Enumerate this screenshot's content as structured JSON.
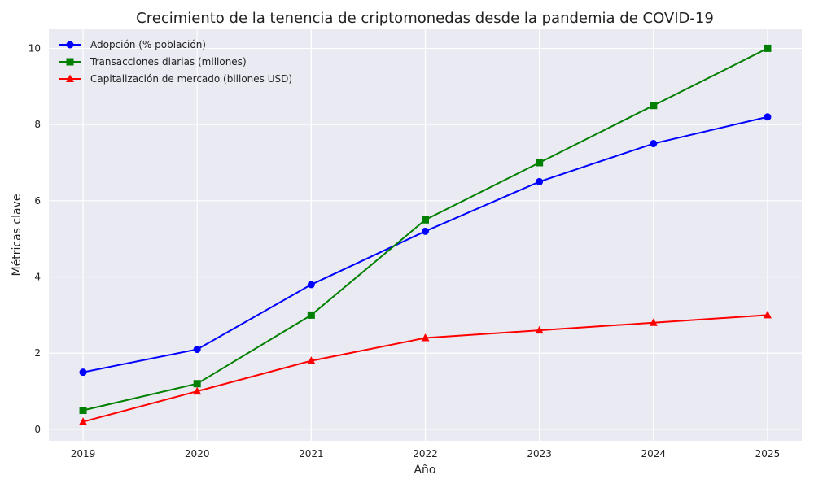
{
  "chart_data": {
    "type": "line",
    "title": "Crecimiento de la tenencia de criptomonedas desde la pandemia de COVID-19",
    "xlabel": "Año",
    "ylabel": "Métricas clave",
    "x": [
      2019,
      2020,
      2021,
      2022,
      2023,
      2024,
      2025
    ],
    "xlim": [
      2018.7,
      2025.3
    ],
    "ylim": [
      -0.3,
      10.5
    ],
    "yticks": [
      0,
      2,
      4,
      6,
      8,
      10
    ],
    "grid": true,
    "legend_position": "top-left",
    "background_color": "#eaeaf2",
    "series": [
      {
        "name": "Adopción (% población)",
        "values": [
          1.5,
          2.1,
          3.8,
          5.2,
          6.5,
          7.5,
          8.2
        ],
        "color": "#0000ff",
        "marker": "circle"
      },
      {
        "name": "Transacciones diarias (millones)",
        "values": [
          0.5,
          1.2,
          3.0,
          5.5,
          7.0,
          8.5,
          10.0
        ],
        "color": "#008000",
        "marker": "square"
      },
      {
        "name": "Capitalización de mercado (billones USD)",
        "values": [
          0.2,
          1.0,
          1.8,
          2.4,
          2.6,
          2.8,
          3.0
        ],
        "color": "#ff0000",
        "marker": "triangle"
      }
    ]
  }
}
